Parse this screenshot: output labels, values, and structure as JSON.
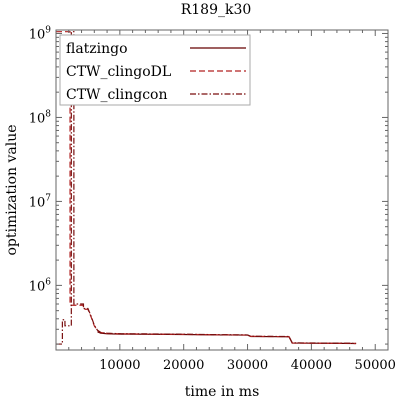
{
  "chart_data": {
    "type": "line",
    "title": "R189_k30",
    "xlabel": "time in ms",
    "ylabel": "optimization value",
    "xscale": "linear",
    "yscale": "log",
    "xlim": [
      0,
      52000
    ],
    "ylim": [
      170000,
      1100000000
    ],
    "xticks": [
      10000,
      20000,
      30000,
      40000,
      50000
    ],
    "xtick_labels": [
      "10000",
      "20000",
      "30000",
      "40000",
      "50000"
    ],
    "yticks": [
      1000000,
      10000000,
      100000000,
      1000000000
    ],
    "ytick_labels": [
      "10^6",
      "10^7",
      "10^8",
      "10^9"
    ],
    "legend_position": "top-left",
    "grid": false,
    "series": [
      {
        "name": "flatzingo",
        "color": "#660000",
        "dash": "solid",
        "points": [
          [
            6500,
            280000
          ],
          [
            7000,
            270000
          ],
          [
            8000,
            265000
          ],
          [
            10000,
            263000
          ],
          [
            15000,
            262000
          ],
          [
            20000,
            260000
          ],
          [
            25000,
            257000
          ],
          [
            30000,
            256000
          ],
          [
            30500,
            246000
          ],
          [
            35000,
            245000
          ],
          [
            36500,
            244000
          ],
          [
            37000,
            206000
          ],
          [
            40000,
            205000
          ],
          [
            45000,
            204000
          ],
          [
            47000,
            203000
          ]
        ]
      },
      {
        "name": "CTW_clingoDL",
        "color": "#b22222",
        "dash": "dashed",
        "points": [
          [
            0,
            1050000000
          ],
          [
            2200,
            1050000000
          ],
          [
            2200,
            580000
          ],
          [
            4300,
            580000
          ],
          [
            4300,
            520000
          ],
          [
            5000,
            520000
          ],
          [
            5500,
            420000
          ],
          [
            6000,
            330000
          ],
          [
            6500,
            290000
          ],
          [
            7000,
            275000
          ],
          [
            8000,
            268000
          ],
          [
            10000,
            265000
          ],
          [
            15000,
            263000
          ],
          [
            20000,
            261000
          ],
          [
            25000,
            258000
          ],
          [
            30000,
            256000
          ],
          [
            30500,
            247000
          ],
          [
            36500,
            245000
          ],
          [
            37000,
            206000
          ],
          [
            40000,
            205000
          ],
          [
            45000,
            204000
          ],
          [
            47000,
            203000
          ]
        ]
      },
      {
        "name": "CTW_clingcon",
        "color": "#7a0f0f",
        "dash": "dashdot",
        "points": [
          [
            0,
            200000
          ],
          [
            1000,
            200000
          ],
          [
            1000,
            390000
          ],
          [
            1400,
            390000
          ],
          [
            1400,
            330000
          ],
          [
            2400,
            330000
          ],
          [
            2400,
            1050000000
          ],
          [
            2800,
            1050000000
          ],
          [
            2800,
            600000
          ],
          [
            4300,
            600000
          ],
          [
            4300,
            530000
          ],
          [
            5000,
            530000
          ],
          [
            5500,
            430000
          ],
          [
            6000,
            335000
          ],
          [
            6500,
            292000
          ],
          [
            7000,
            276000
          ],
          [
            8000,
            269000
          ],
          [
            10000,
            266000
          ],
          [
            15000,
            264000
          ],
          [
            20000,
            262000
          ],
          [
            25000,
            259000
          ],
          [
            30000,
            257000
          ],
          [
            30500,
            248000
          ],
          [
            36500,
            246000
          ],
          [
            37000,
            207000
          ],
          [
            40000,
            206000
          ],
          [
            45000,
            205000
          ],
          [
            47000,
            204000
          ]
        ]
      }
    ]
  }
}
